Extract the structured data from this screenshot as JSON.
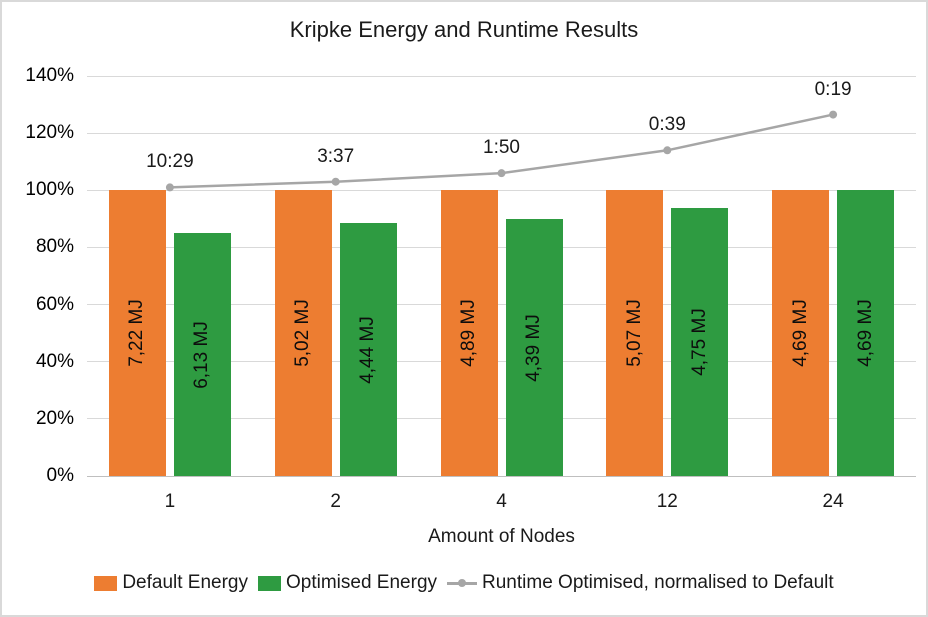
{
  "chart_data": {
    "type": "bar",
    "title": "Kripke Energy and Runtime Results",
    "xlabel": "Amount of Nodes",
    "ylabel": "",
    "categories": [
      "1",
      "2",
      "4",
      "12",
      "24"
    ],
    "ylim": [
      0,
      140
    ],
    "y_tick_step": 20,
    "y_ticks": [
      "0%",
      "20%",
      "40%",
      "60%",
      "80%",
      "100%",
      "120%",
      "140%"
    ],
    "grid": true,
    "legend_position": "bottom",
    "series": [
      {
        "name": "Default Energy",
        "type": "bar",
        "color": "#ED7D31",
        "values_pct": [
          100,
          100,
          100,
          100,
          100
        ],
        "values_mj": [
          7.22,
          5.02,
          4.89,
          5.07,
          4.69
        ],
        "data_labels": [
          "7,22 MJ",
          "5,02 MJ",
          "4,89 MJ",
          "5,07 MJ",
          "4,69 MJ"
        ]
      },
      {
        "name": "Optimised Energy",
        "type": "bar",
        "color": "#2E9B41",
        "values_pct": [
          84.9,
          88.4,
          89.8,
          93.7,
          100
        ],
        "values_mj": [
          6.13,
          4.44,
          4.39,
          4.75,
          4.69
        ],
        "data_labels": [
          "6,13 MJ",
          "4,44 MJ",
          "4,39 MJ",
          "4,75 MJ",
          "4,69 MJ"
        ]
      },
      {
        "name": "Runtime Optimised, normalised to Default",
        "type": "line",
        "color": "#A6A6A6",
        "values_pct": [
          101,
          103,
          106,
          114,
          126.5
        ],
        "data_labels": [
          "10:29",
          "3:37",
          "1:50",
          "0:39",
          "0:19"
        ]
      }
    ],
    "colors": {
      "grid": "#D9D9D9",
      "axis": "#BFBFBF",
      "text": "#000000",
      "border": "#D9D9D9",
      "background": "#FFFFFF"
    }
  }
}
